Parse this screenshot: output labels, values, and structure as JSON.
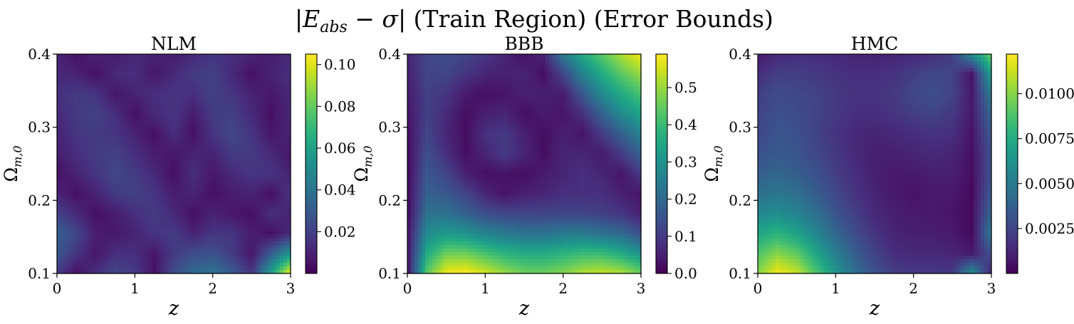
{
  "figure": {
    "title_bar1": "|",
    "title_E": "E",
    "title_sub": "abs",
    "title_minus": " − ",
    "title_sigma": "σ",
    "title_bar2": "|",
    "title_rest": " (Train Region) (Error Bounds)"
  },
  "colormap": "viridis",
  "chart_data": [
    {
      "type": "heatmap",
      "title": "NLM",
      "xlabel": "z",
      "ylabel": "Ω_{m,0}",
      "ylabel_main": "Ω",
      "ylabel_sub": "m,0",
      "xlim": [
        0,
        3
      ],
      "ylim": [
        0.1,
        0.4
      ],
      "xticks": [
        "0",
        "1",
        "2",
        "3"
      ],
      "yticks": [
        "0.1",
        "0.2",
        "0.3",
        "0.4"
      ],
      "colorbar": {
        "min": 0.0,
        "max": 0.105,
        "ticks": [
          "0.02",
          "0.04",
          "0.06",
          "0.08",
          "0.10"
        ],
        "tick_values": [
          0.02,
          0.04,
          0.06,
          0.08,
          0.1
        ]
      },
      "z_grid": [
        [
          0.01,
          0.004,
          0.01,
          0.008,
          0.012,
          0.01,
          0.008,
          0.012,
          0.016,
          0.014,
          0.01,
          0.008,
          0.012
        ],
        [
          0.012,
          0.01,
          0.004,
          0.012,
          0.014,
          0.006,
          0.012,
          0.018,
          0.02,
          0.012,
          0.004,
          0.01,
          0.014
        ],
        [
          0.014,
          0.018,
          0.016,
          0.006,
          0.01,
          0.014,
          0.016,
          0.014,
          0.02,
          0.016,
          0.01,
          0.006,
          0.012
        ],
        [
          0.012,
          0.018,
          0.02,
          0.014,
          0.004,
          0.012,
          0.016,
          0.008,
          0.018,
          0.02,
          0.012,
          0.004,
          0.012
        ],
        [
          0.01,
          0.016,
          0.018,
          0.016,
          0.01,
          0.004,
          0.014,
          0.004,
          0.016,
          0.022,
          0.016,
          0.006,
          0.01
        ],
        [
          0.008,
          0.014,
          0.018,
          0.02,
          0.014,
          0.008,
          0.006,
          0.01,
          0.01,
          0.018,
          0.018,
          0.012,
          0.006
        ],
        [
          0.004,
          0.01,
          0.016,
          0.022,
          0.018,
          0.012,
          0.004,
          0.014,
          0.006,
          0.012,
          0.016,
          0.016,
          0.01
        ],
        [
          0.01,
          0.004,
          0.01,
          0.018,
          0.02,
          0.016,
          0.008,
          0.01,
          0.004,
          0.008,
          0.01,
          0.004,
          0.016
        ],
        [
          0.02,
          0.012,
          0.004,
          0.008,
          0.014,
          0.018,
          0.012,
          0.004,
          0.01,
          0.006,
          0.004,
          0.014,
          0.01
        ],
        [
          0.032,
          0.022,
          0.008,
          0.006,
          0.01,
          0.016,
          0.018,
          0.01,
          0.016,
          0.016,
          0.008,
          0.004,
          0.012
        ],
        [
          0.028,
          0.016,
          0.006,
          0.014,
          0.014,
          0.006,
          0.018,
          0.024,
          0.026,
          0.018,
          0.006,
          0.03,
          0.055
        ],
        [
          0.018,
          0.004,
          0.014,
          0.022,
          0.018,
          0.004,
          0.024,
          0.036,
          0.04,
          0.03,
          0.016,
          0.06,
          0.105
        ]
      ]
    },
    {
      "type": "heatmap",
      "title": "BBB",
      "xlabel": "z",
      "ylabel": "Ω_{m,0}",
      "ylabel_main": "Ω",
      "ylabel_sub": "m,0",
      "xlim": [
        0,
        3
      ],
      "ylim": [
        0.1,
        0.4
      ],
      "xticks": [
        "0",
        "1",
        "2",
        "3"
      ],
      "yticks": [
        "0.1",
        "0.2",
        "0.3",
        "0.4"
      ],
      "colorbar": {
        "min": 0.0,
        "max": 0.59,
        "ticks": [
          "0.0",
          "0.1",
          "0.2",
          "0.3",
          "0.4",
          "0.5"
        ],
        "tick_values": [
          0.0,
          0.1,
          0.2,
          0.3,
          0.4,
          0.5
        ]
      },
      "z_grid": [
        [
          0.06,
          0.12,
          0.14,
          0.12,
          0.09,
          0.06,
          0.02,
          0.06,
          0.24,
          0.36,
          0.44,
          0.52,
          0.58
        ],
        [
          0.05,
          0.12,
          0.12,
          0.09,
          0.06,
          0.05,
          0.06,
          0.02,
          0.12,
          0.26,
          0.36,
          0.44,
          0.5
        ],
        [
          0.04,
          0.11,
          0.09,
          0.04,
          0.02,
          0.03,
          0.05,
          0.05,
          0.04,
          0.16,
          0.28,
          0.36,
          0.42
        ],
        [
          0.03,
          0.11,
          0.07,
          0.02,
          0.05,
          0.06,
          0.02,
          0.04,
          0.03,
          0.08,
          0.18,
          0.28,
          0.34
        ],
        [
          0.02,
          0.12,
          0.06,
          0.02,
          0.08,
          0.1,
          0.05,
          0.02,
          0.05,
          0.03,
          0.1,
          0.18,
          0.26
        ],
        [
          0.01,
          0.14,
          0.08,
          0.02,
          0.06,
          0.1,
          0.06,
          0.02,
          0.06,
          0.06,
          0.04,
          0.1,
          0.18
        ],
        [
          0.01,
          0.16,
          0.12,
          0.05,
          0.02,
          0.03,
          0.02,
          0.04,
          0.06,
          0.08,
          0.06,
          0.03,
          0.1
        ],
        [
          0.01,
          0.18,
          0.16,
          0.12,
          0.06,
          0.03,
          0.05,
          0.06,
          0.08,
          0.08,
          0.08,
          0.05,
          0.03
        ],
        [
          0.01,
          0.22,
          0.22,
          0.18,
          0.14,
          0.12,
          0.12,
          0.12,
          0.12,
          0.12,
          0.11,
          0.09,
          0.05
        ],
        [
          0.02,
          0.28,
          0.32,
          0.3,
          0.26,
          0.24,
          0.22,
          0.22,
          0.24,
          0.24,
          0.22,
          0.2,
          0.14
        ],
        [
          0.02,
          0.36,
          0.46,
          0.46,
          0.42,
          0.38,
          0.36,
          0.36,
          0.38,
          0.4,
          0.4,
          0.36,
          0.3
        ],
        [
          0.01,
          0.44,
          0.58,
          0.59,
          0.55,
          0.5,
          0.46,
          0.46,
          0.48,
          0.52,
          0.54,
          0.52,
          0.46
        ]
      ]
    },
    {
      "type": "heatmap",
      "title": "HMC",
      "xlabel": "z",
      "ylabel": "Ω_{m,0}",
      "ylabel_main": "Ω",
      "ylabel_sub": "m,0",
      "xlim": [
        0,
        3
      ],
      "ylim": [
        0.1,
        0.4
      ],
      "xticks": [
        "0",
        "1",
        "2",
        "3"
      ],
      "yticks": [
        "0.1",
        "0.2",
        "0.3",
        "0.4"
      ],
      "colorbar": {
        "min": 0.0,
        "max": 0.0122,
        "ticks": [
          "0.0025",
          "0.0050",
          "0.0075",
          "0.0100"
        ],
        "tick_values": [
          0.0025,
          0.005,
          0.0075,
          0.01
        ]
      },
      "z_grid": [
        [
          0.0008,
          0.0014,
          0.0016,
          0.0016,
          0.0014,
          0.0012,
          0.0012,
          0.0012,
          0.0014,
          0.0016,
          0.0022,
          0.006,
          0.0095
        ],
        [
          0.0016,
          0.0022,
          0.0022,
          0.002,
          0.0018,
          0.0016,
          0.0016,
          0.0018,
          0.0022,
          0.0026,
          0.0024,
          0.0006,
          0.007
        ],
        [
          0.0022,
          0.0028,
          0.0026,
          0.0024,
          0.002,
          0.0018,
          0.0018,
          0.002,
          0.0026,
          0.003,
          0.0024,
          0.0008,
          0.005
        ],
        [
          0.0024,
          0.003,
          0.0028,
          0.0024,
          0.002,
          0.0016,
          0.0016,
          0.0018,
          0.0022,
          0.0024,
          0.002,
          0.0008,
          0.004
        ],
        [
          0.0026,
          0.0032,
          0.003,
          0.0024,
          0.0018,
          0.0014,
          0.0012,
          0.0014,
          0.0016,
          0.0018,
          0.0016,
          0.0006,
          0.0034
        ],
        [
          0.003,
          0.0034,
          0.0032,
          0.0026,
          0.002,
          0.0014,
          0.001,
          0.001,
          0.0012,
          0.0014,
          0.0012,
          0.0005,
          0.003
        ],
        [
          0.0036,
          0.004,
          0.0036,
          0.003,
          0.0022,
          0.0016,
          0.001,
          0.0008,
          0.0008,
          0.001,
          0.001,
          0.0004,
          0.003
        ],
        [
          0.0044,
          0.0048,
          0.0044,
          0.0036,
          0.0026,
          0.0018,
          0.0012,
          0.0008,
          0.0006,
          0.0008,
          0.0008,
          0.0003,
          0.0034
        ],
        [
          0.0056,
          0.006,
          0.0054,
          0.0044,
          0.0032,
          0.0022,
          0.0014,
          0.001,
          0.0008,
          0.0008,
          0.0006,
          0.0003,
          0.004
        ],
        [
          0.0072,
          0.0078,
          0.007,
          0.0056,
          0.004,
          0.0028,
          0.0018,
          0.0012,
          0.001,
          0.001,
          0.0008,
          0.0003,
          0.005
        ],
        [
          0.0088,
          0.01,
          0.0092,
          0.0072,
          0.0052,
          0.0036,
          0.0024,
          0.0016,
          0.0014,
          0.0014,
          0.0012,
          0.0008,
          0.003
        ],
        [
          0.01,
          0.012,
          0.0112,
          0.0088,
          0.0064,
          0.0044,
          0.003,
          0.0022,
          0.002,
          0.002,
          0.002,
          0.006,
          0.001
        ]
      ]
    }
  ]
}
